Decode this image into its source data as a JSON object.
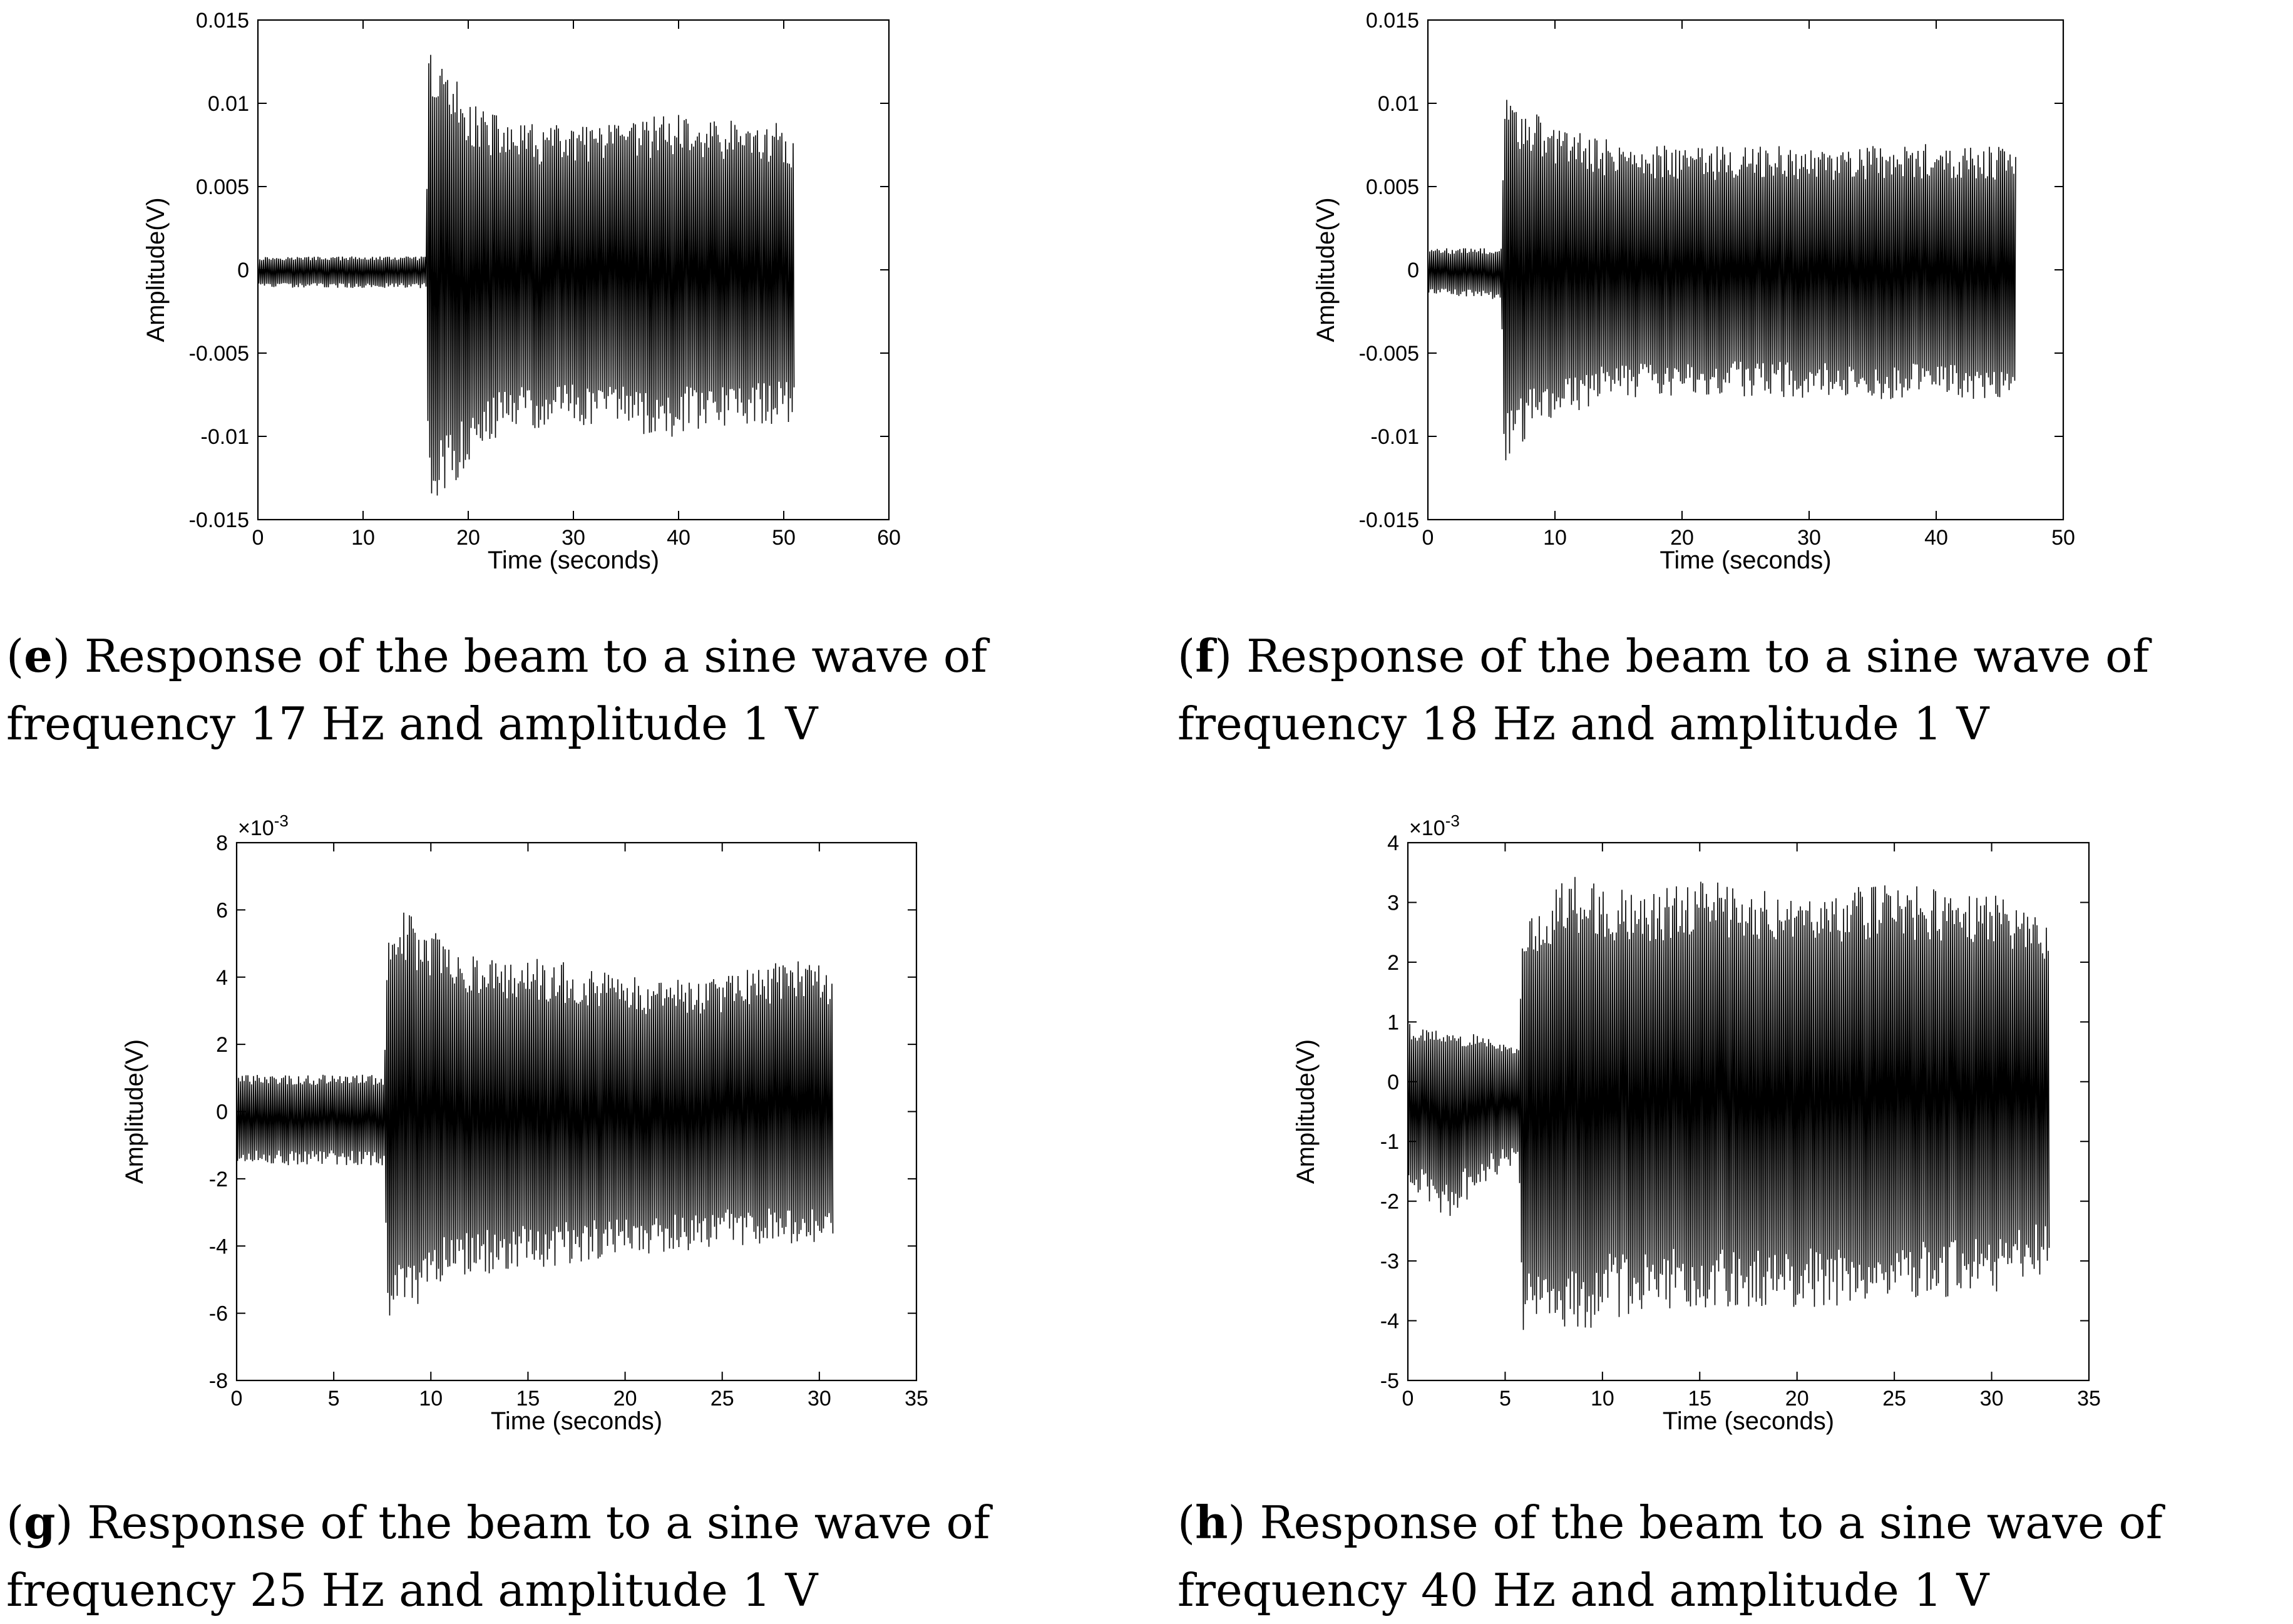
{
  "panels": [
    {
      "letter": "e",
      "caption_text": "Response of the beam to a sine wave of frequency 17 Hz and amplitude 1 V"
    },
    {
      "letter": "f",
      "caption_text": "Response of the beam to a sine wave of frequency 18 Hz and amplitude 1 V"
    },
    {
      "letter": "g",
      "caption_text": "Response of the beam to a sine wave of frequency 25 Hz and amplitude 1 V"
    },
    {
      "letter": "h",
      "caption_text": "Response of the beam to a sine wave of frequency 40 Hz and amplitude 1 V"
    }
  ],
  "chart_data": [
    {
      "type": "line",
      "xlabel": "Time (seconds)",
      "ylabel": "Amplitude(V)",
      "xlim": [
        0,
        60
      ],
      "ylim": [
        -0.015,
        0.015
      ],
      "xticks": [
        "0",
        "10",
        "20",
        "30",
        "40",
        "50",
        "60"
      ],
      "yticks": [
        "0.015",
        "0.01",
        "0.005",
        "0",
        "-0.005",
        "-0.01",
        "-0.015"
      ],
      "exponent_label": "",
      "line_color": "#000000",
      "series": [
        {
          "x": [
            0,
            16,
            16.2,
            17,
            18,
            19,
            20,
            22,
            25,
            30,
            35,
            39,
            40,
            45,
            50,
            51
          ],
          "upper": [
            0.0008,
            0.0008,
            0.0135,
            0.0128,
            0.0122,
            0.0114,
            0.0105,
            0.0095,
            0.0088,
            0.0087,
            0.0088,
            0.0096,
            0.0093,
            0.009,
            0.0088,
            0.0082
          ],
          "lower": [
            -0.0011,
            -0.0011,
            -0.0142,
            -0.014,
            -0.0134,
            -0.0125,
            -0.0115,
            -0.0103,
            -0.0096,
            -0.0094,
            -0.0094,
            -0.0105,
            -0.0098,
            -0.0094,
            -0.0093,
            -0.0093
          ]
        }
      ]
    },
    {
      "type": "line",
      "xlabel": "Time (seconds)",
      "ylabel": "Amplitude(V)",
      "xlim": [
        0,
        50
      ],
      "ylim": [
        -0.015,
        0.015
      ],
      "xticks": [
        "0",
        "10",
        "20",
        "30",
        "40",
        "50"
      ],
      "yticks": [
        "0.015",
        "0.01",
        "0.005",
        "0",
        "-0.005",
        "-0.01",
        "-0.015"
      ],
      "exponent_label": "",
      "line_color": "#000000",
      "series": [
        {
          "x": [
            0,
            5.8,
            6,
            7,
            8,
            10,
            12,
            15,
            20,
            25,
            30,
            35,
            40,
            45,
            46.3
          ],
          "upper": [
            0.0013,
            0.0013,
            0.0105,
            0.0102,
            0.0096,
            0.0088,
            0.0082,
            0.0077,
            0.0076,
            0.0074,
            0.0075,
            0.0075,
            0.0076,
            0.0075,
            0.007
          ],
          "lower": [
            -0.0014,
            -0.0018,
            -0.0118,
            -0.0108,
            -0.0099,
            -0.009,
            -0.0084,
            -0.0078,
            -0.0076,
            -0.0076,
            -0.0077,
            -0.0078,
            -0.0078,
            -0.0078,
            -0.007
          ]
        }
      ]
    },
    {
      "type": "line",
      "xlabel": "Time (seconds)",
      "ylabel": "Amplitude(V)",
      "xlim": [
        0,
        35
      ],
      "ylim": [
        -8,
        8
      ],
      "y_scale_factor": 0.001,
      "xticks": [
        "0",
        "5",
        "10",
        "15",
        "20",
        "25",
        "30",
        "35"
      ],
      "yticks": [
        "8",
        "6",
        "4",
        "2",
        "0",
        "-2",
        "-4",
        "-6",
        "-8"
      ],
      "exponent_label": "×10-3",
      "line_color": "#000000",
      "series": [
        {
          "x": [
            0,
            7.6,
            7.8,
            8.5,
            9.5,
            10.5,
            12,
            15,
            18,
            20,
            22,
            25,
            28,
            30,
            30.7
          ],
          "upper": [
            1.1,
            1.1,
            6.2,
            6.0,
            5.8,
            5.2,
            4.8,
            4.6,
            4.4,
            4.1,
            3.9,
            4.0,
            4.5,
            4.7,
            4.2
          ],
          "lower": [
            -1.6,
            -1.6,
            -6.4,
            -6.2,
            -5.8,
            -5.2,
            -4.9,
            -4.7,
            -4.5,
            -4.4,
            -4.3,
            -4.0,
            -4.0,
            -3.9,
            -3.9
          ]
        }
      ]
    },
    {
      "type": "line",
      "xlabel": "Time (seconds)",
      "ylabel": "Amplitude(V)",
      "xlim": [
        0,
        35
      ],
      "ylim": [
        -5,
        4
      ],
      "y_scale_factor": 0.001,
      "xticks": [
        "0",
        "5",
        "10",
        "15",
        "20",
        "25",
        "30",
        "35"
      ],
      "yticks": [
        "4",
        "3",
        "2",
        "1",
        "0",
        "-1",
        "-2",
        "-3",
        "-4",
        "-5"
      ],
      "exponent_label": "×10-3",
      "line_color": "#000000",
      "series": [
        {
          "x": [
            0,
            2,
            4,
            5.7,
            5.9,
            7,
            8,
            10,
            12,
            15,
            18,
            20,
            25,
            30,
            33
          ],
          "upper": [
            1.0,
            0.8,
            0.8,
            0.6,
            2.8,
            3.0,
            3.5,
            3.3,
            3.2,
            3.4,
            3.3,
            3.2,
            3.3,
            3.2,
            2.7
          ],
          "lower": [
            -1.8,
            -2.3,
            -1.7,
            -1.4,
            -4.3,
            -4.3,
            -4.4,
            -4.0,
            -3.9,
            -3.8,
            -3.8,
            -3.8,
            -3.7,
            -3.6,
            -3.2
          ]
        }
      ]
    }
  ]
}
